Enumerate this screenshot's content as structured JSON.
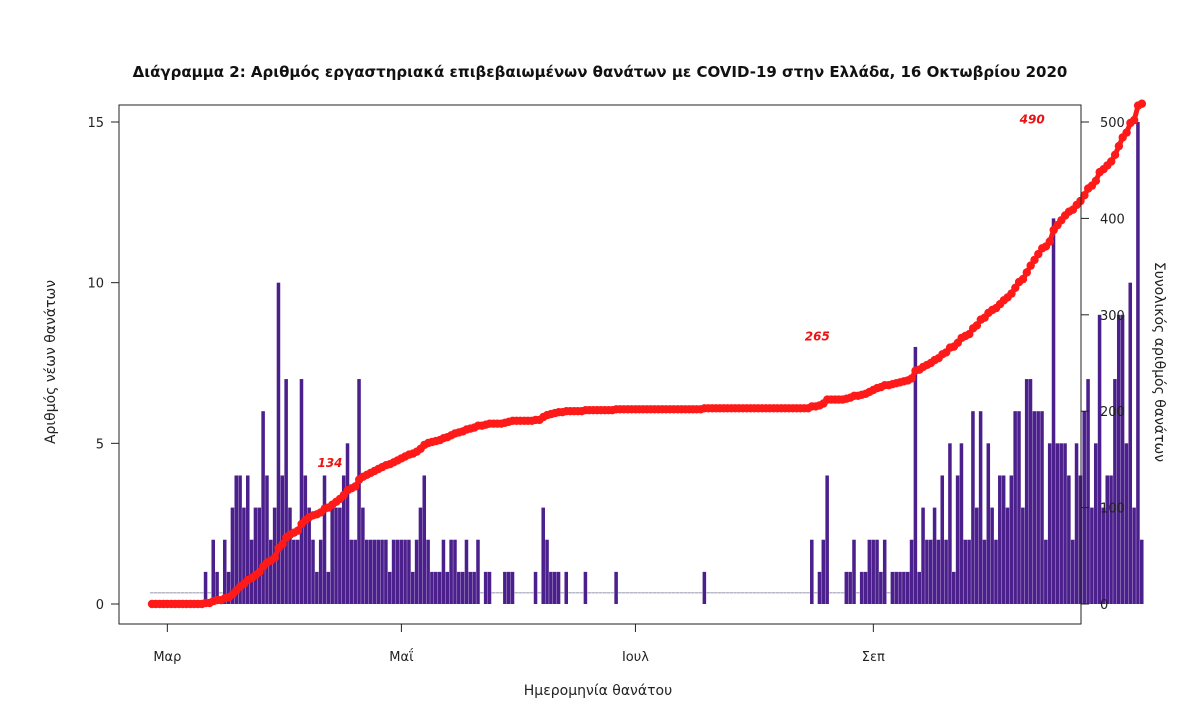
{
  "chart_data": {
    "type": "bar+line",
    "title": "Διάγραμμα 2: Αριθμός εργαστηριακά επιβεβαιωμένων θανάτων με COVID-19 στην Ελλάδα, 16 Οκτωβρίου 2020",
    "xlabel": "Ημερομηνία θανάτου",
    "ylabel_left": "Αριθμός νέων θανάτων",
    "ylabel_right": "Συνολικός αριθμός θανάτων",
    "x_start": "2020-02-26",
    "x_end": "2020-10-16",
    "x_ticks": [
      "Μαρ",
      "Μαΐ",
      "Ιουλ",
      "Σεπ"
    ],
    "x_tick_dates": [
      "2020-03-01",
      "2020-05-01",
      "2020-07-01",
      "2020-09-01"
    ],
    "ylim_left": [
      0,
      15
    ],
    "yticks_left": [
      0,
      5,
      10,
      15
    ],
    "ylim_right": [
      0,
      500
    ],
    "yticks_right": [
      0,
      100,
      200,
      300,
      400,
      500
    ],
    "colors": {
      "bars": "#4b1f8c",
      "line": "#ff1a1a",
      "axis": "#222222"
    },
    "series": [
      {
        "name": "Νέοι θάνατοι",
        "kind": "bar",
        "axis": "left",
        "values": [
          0,
          0,
          0,
          0,
          0,
          0,
          0,
          0,
          0,
          0,
          0,
          0,
          0,
          0,
          1,
          0,
          2,
          1,
          0,
          2,
          1,
          3,
          4,
          4,
          3,
          4,
          2,
          3,
          3,
          6,
          4,
          2,
          3,
          10,
          4,
          7,
          3,
          2,
          2,
          7,
          4,
          3,
          2,
          1,
          2,
          4,
          1,
          3,
          3,
          3,
          4,
          5,
          2,
          2,
          7,
          3,
          2,
          2,
          2,
          2,
          2,
          2,
          1,
          2,
          2,
          2,
          2,
          2,
          1,
          2,
          3,
          4,
          2,
          1,
          1,
          1,
          2,
          1,
          2,
          2,
          1,
          1,
          2,
          1,
          1,
          2,
          0,
          1,
          1,
          0,
          0,
          0,
          1,
          1,
          1,
          0,
          0,
          0,
          0,
          0,
          1,
          0,
          3,
          2,
          1,
          1,
          1,
          0,
          1,
          0,
          0,
          0,
          0,
          1,
          0,
          0,
          0,
          0,
          0,
          0,
          0,
          1,
          0,
          0,
          0,
          0,
          0,
          0,
          0,
          0,
          0,
          0,
          0,
          0,
          0,
          0,
          0,
          0,
          0,
          0,
          0,
          0,
          0,
          0,
          1,
          0,
          0,
          0,
          0,
          0,
          0,
          0,
          0,
          0,
          0,
          0,
          0,
          0,
          0,
          0,
          0,
          0,
          0,
          0,
          0,
          0,
          0,
          0,
          0,
          0,
          0,
          0,
          2,
          0,
          1,
          2,
          4,
          0,
          0,
          0,
          0,
          1,
          1,
          2,
          0,
          1,
          1,
          2,
          2,
          2,
          1,
          2,
          0,
          1,
          1,
          1,
          1,
          1,
          2,
          8,
          1,
          3,
          2,
          2,
          3,
          2,
          4,
          2,
          5,
          1,
          4,
          5,
          2,
          2,
          6,
          3,
          6,
          2,
          5,
          3,
          2,
          4,
          4,
          3,
          4,
          6,
          6,
          3,
          7,
          7,
          6,
          6,
          6,
          2,
          5,
          12,
          5,
          5,
          5,
          4,
          2,
          5,
          4,
          6,
          7,
          3,
          5,
          9,
          3,
          4,
          4,
          7,
          9,
          9,
          5,
          10,
          3,
          15,
          2
        ]
      },
      {
        "name": "Συνολικοί θάνατοι",
        "kind": "line",
        "axis": "right"
      }
    ],
    "annotations": [
      {
        "label": "490",
        "date": "2020-10-15",
        "value": 490
      },
      {
        "label": "265",
        "date": "2020-08-20",
        "value": 265
      },
      {
        "label": "134",
        "date": "2020-04-15",
        "value": 134
      }
    ]
  }
}
